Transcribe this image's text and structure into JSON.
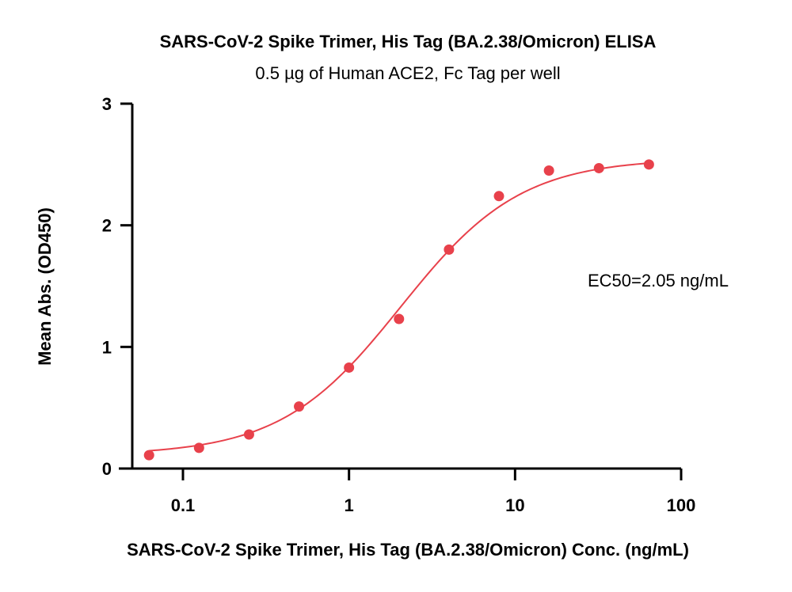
{
  "chart_data": {
    "type": "scatter",
    "title": "SARS-CoV-2 Spike Trimer, His Tag (BA.2.38/Omicron) ELISA",
    "subtitle": "0.5 µg of Human ACE2, Fc Tag per well",
    "xlabel": "SARS-CoV-2 Spike Trimer, His Tag (BA.2.38/Omicron) Conc. (ng/mL)",
    "ylabel": "Mean Abs. (OD450)",
    "x_scale": "log",
    "xlim": [
      0.0562,
      100
    ],
    "ylim": [
      0,
      3
    ],
    "x_ticks": [
      0.1,
      1,
      10,
      100
    ],
    "x_tick_labels": [
      "0.1",
      "1",
      "10",
      "100"
    ],
    "y_ticks": [
      0,
      1,
      2,
      3
    ],
    "y_tick_labels": [
      "0",
      "1",
      "2",
      "3"
    ],
    "grid": false,
    "series": [
      {
        "color": "#e8414b",
        "x": [
          0.0625,
          0.125,
          0.25,
          0.5,
          1,
          2,
          4,
          8,
          16,
          32,
          64
        ],
        "y": [
          0.11,
          0.17,
          0.28,
          0.51,
          0.83,
          1.23,
          1.8,
          2.24,
          2.45,
          2.47,
          2.5
        ]
      }
    ],
    "fit_curve": {
      "model": "4PL",
      "bottom": 0.11,
      "top": 2.55,
      "ec50": 2.05,
      "hill": 1.2,
      "color": "#e8414b"
    },
    "annotation": "EC50=2.05 ng/mL"
  }
}
